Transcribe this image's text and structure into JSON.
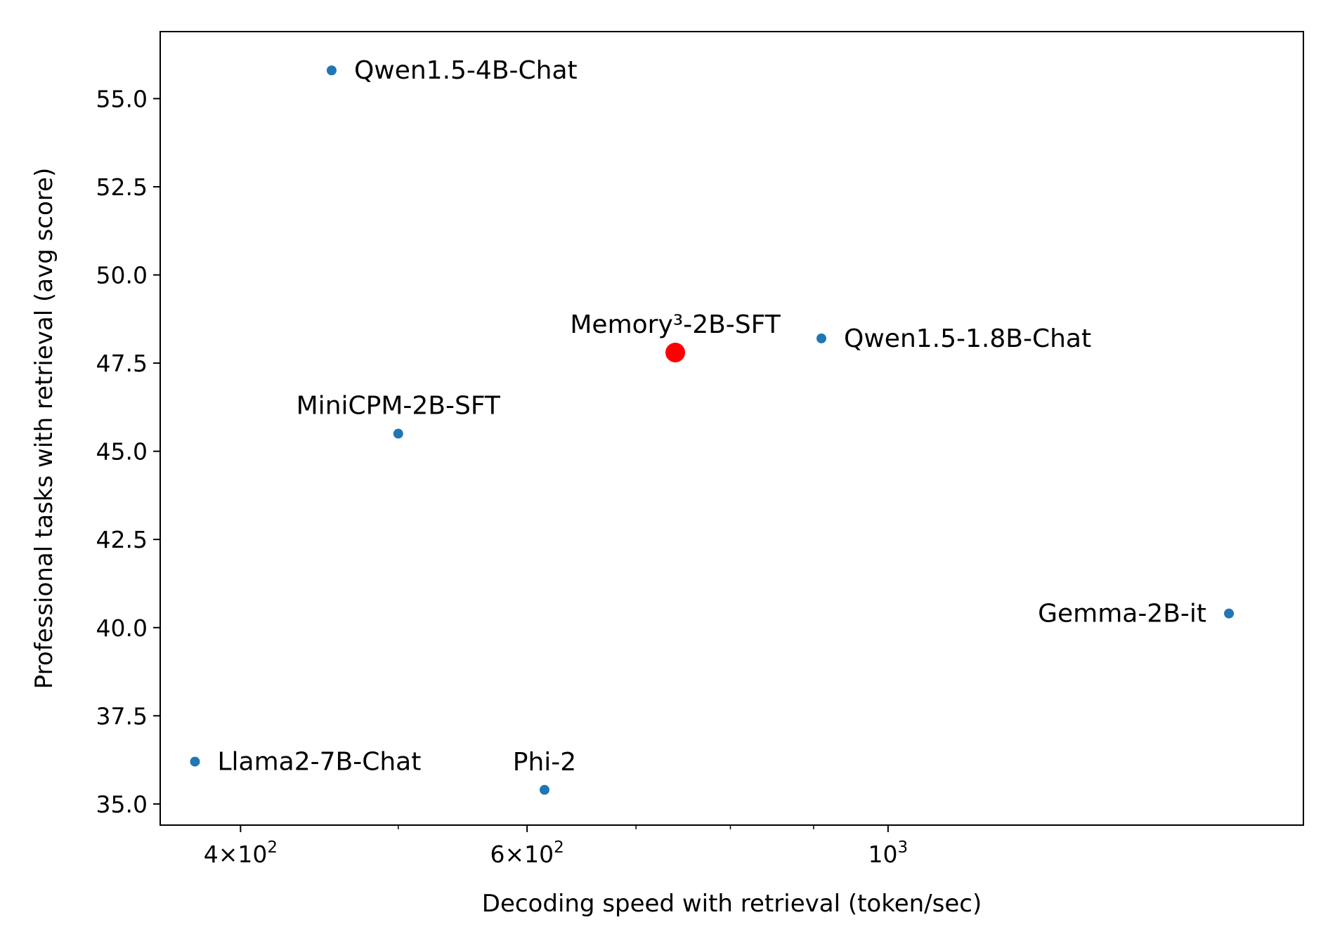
{
  "chart_data": {
    "type": "scatter",
    "xlabel": "Decoding speed with retrieval (token/sec)",
    "ylabel": "Professional tasks with retrieval (avg score)",
    "xscale": "log",
    "xlim": [
      357,
      1800
    ],
    "ylim": [
      34.4,
      56.9
    ],
    "grid": false,
    "y_ticks": [
      {
        "value": 35.0,
        "label": "35.0"
      },
      {
        "value": 37.5,
        "label": "37.5"
      },
      {
        "value": 40.0,
        "label": "40.0"
      },
      {
        "value": 42.5,
        "label": "42.5"
      },
      {
        "value": 45.0,
        "label": "45.0"
      },
      {
        "value": 47.5,
        "label": "47.5"
      },
      {
        "value": 50.0,
        "label": "50.0"
      },
      {
        "value": 52.5,
        "label": "52.5"
      },
      {
        "value": 55.0,
        "label": "55.0"
      }
    ],
    "x_major_ticks": [
      {
        "value": 400,
        "base": "4×10",
        "exp": "2"
      },
      {
        "value": 600,
        "base": "6×10",
        "exp": "2"
      },
      {
        "value": 1000,
        "base": "10",
        "exp": "3"
      }
    ],
    "x_minor_ticks": [
      500,
      700,
      800,
      900
    ],
    "points": [
      {
        "name": "Qwen1.5-4B-Chat",
        "x": 455,
        "y": 55.8,
        "color": "#1f77b4",
        "highlight": false,
        "label_pos": "right"
      },
      {
        "name": "Qwen1.5-1.8B-Chat",
        "x": 910,
        "y": 48.2,
        "color": "#1f77b4",
        "highlight": false,
        "label_pos": "right"
      },
      {
        "name": "Memory³-2B-SFT",
        "x": 740,
        "y": 47.8,
        "color": "#ff0000",
        "highlight": true,
        "label_pos": "top"
      },
      {
        "name": "MiniCPM-2B-SFT",
        "x": 500,
        "y": 45.5,
        "color": "#1f77b4",
        "highlight": false,
        "label_pos": "top"
      },
      {
        "name": "Gemma-2B-it",
        "x": 1620,
        "y": 40.4,
        "color": "#1f77b4",
        "highlight": false,
        "label_pos": "left"
      },
      {
        "name": "Llama2-7B-Chat",
        "x": 375,
        "y": 36.2,
        "color": "#1f77b4",
        "highlight": false,
        "label_pos": "right"
      },
      {
        "name": "Phi-2",
        "x": 615,
        "y": 35.4,
        "color": "#1f77b4",
        "highlight": false,
        "label_pos": "top"
      }
    ]
  }
}
